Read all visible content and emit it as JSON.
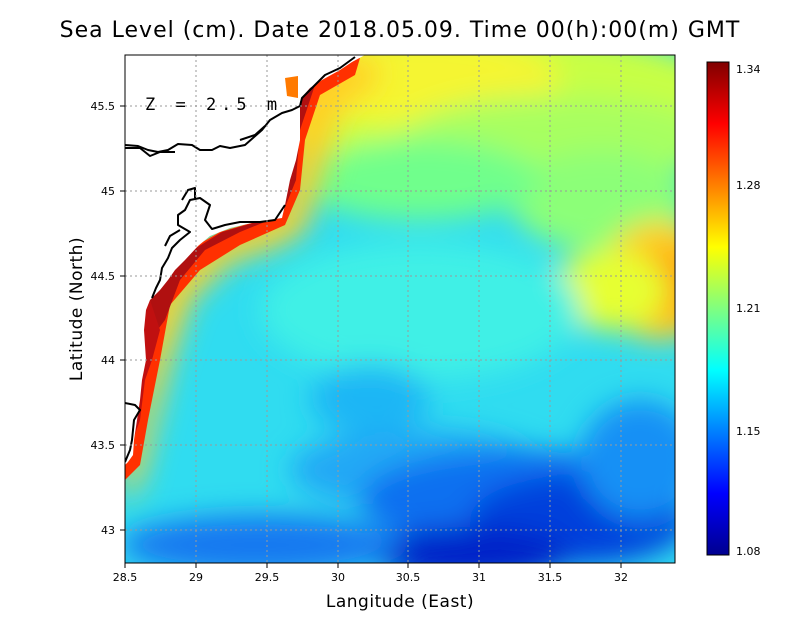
{
  "title": "Sea Level (cm). Date 2018.05.09. Time 00(h):00(m) GMT",
  "depth_label": "Z = 2.5 m",
  "axes": {
    "xlabel": "Langitude (East)",
    "ylabel": "Latitude (North)",
    "xticks": [
      "28.5",
      "29",
      "29.5",
      "30",
      "30.5",
      "31",
      "31.5",
      "32"
    ],
    "yticks": [
      "43",
      "43.5",
      "44",
      "44.5",
      "45",
      "45.5"
    ],
    "xlim": [
      28.5,
      32.4
    ],
    "ylim": [
      42.8,
      45.8
    ]
  },
  "colorbar": {
    "ticks": [
      "1.34",
      "1.28",
      "1.21",
      "1.15",
      "1.08"
    ],
    "range": [
      1.08,
      1.34
    ],
    "colormap": "jet"
  },
  "colors": {
    "land": "#ffffff",
    "coastline": "#000000",
    "grid": "#b0b0b0"
  },
  "chart_data": {
    "type": "heatmap",
    "title": "Sea Level (cm). Date 2018.05.09. Time 00(h):00(m) GMT",
    "xlabel": "Langitude (East)",
    "ylabel": "Latitude (North)",
    "xlim": [
      28.5,
      32.4
    ],
    "ylim": [
      42.8,
      45.8
    ],
    "value_range": [
      1.08,
      1.34
    ],
    "grid": true,
    "features": [
      {
        "description": "coastal maximum along western shelf",
        "lon": 28.9,
        "lat": 44.5,
        "value": 1.34
      },
      {
        "description": "coastal band near 29.8E",
        "lon": 29.8,
        "lat": 45.0,
        "value": 1.3
      },
      {
        "description": "eastern bulge",
        "lon": 32.3,
        "lat": 44.5,
        "value": 1.28
      },
      {
        "description": "northern open sea",
        "lon": 30.5,
        "lat": 45.6,
        "value": 1.24
      },
      {
        "description": "central basin",
        "lon": 30.6,
        "lat": 44.4,
        "value": 1.19
      },
      {
        "description": "local minimum",
        "lon": 30.25,
        "lat": 43.75,
        "value": 1.14
      },
      {
        "description": "southern minimum",
        "lon": 31.2,
        "lat": 42.9,
        "value": 1.08
      }
    ]
  }
}
